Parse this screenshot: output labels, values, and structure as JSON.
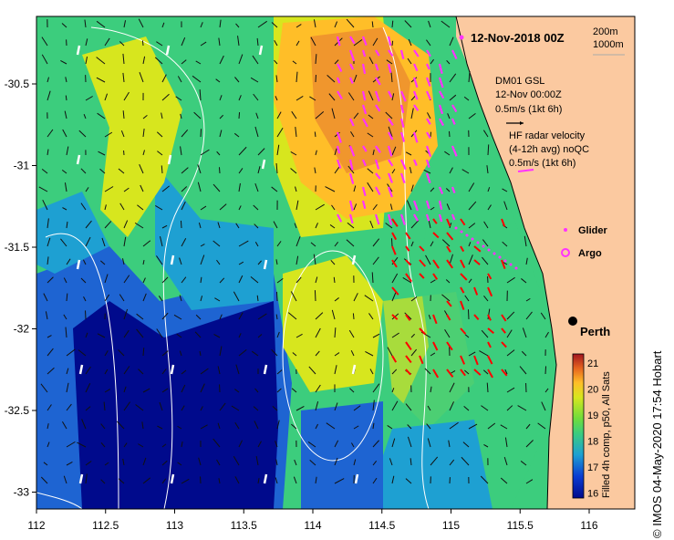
{
  "title": "12-Nov-2018 00Z",
  "isobath_labels": [
    "200m",
    "1000m"
  ],
  "x_ticks": [
    "112",
    "112.5",
    "113",
    "113.5",
    "114",
    "114.5",
    "115",
    "115.5",
    "116"
  ],
  "y_ticks": [
    "-30.5",
    "-31",
    "-31.5",
    "-32",
    "-32.5",
    "-33"
  ],
  "axis_ranges": {
    "lon": [
      112,
      116.3
    ],
    "lat": [
      -33.1,
      -30.2
    ]
  },
  "model_legend": {
    "line1": "DM01 GSL",
    "line2": "12-Nov 00:00Z",
    "line3": "0.5m/s (1kt 6h)"
  },
  "radar_legend": {
    "line1": "HF radar velocity",
    "line2": "(4-12h avg) noQC",
    "line3": "0.5m/s (1kt 6h)"
  },
  "glider_label": "Glider",
  "argo_label": "Argo",
  "city": {
    "name": "Perth",
    "lon": 115.86,
    "lat": -31.95
  },
  "colorbar": {
    "ticks": [
      "21",
      "20",
      "19",
      "18",
      "17",
      "16"
    ],
    "caption": "Filled 4h comp, p50, All Sats"
  },
  "credit": "© IMOS 04-May-2020 17:54 Hobart",
  "colors": {
    "land": "#fbc9a0",
    "model_arrow": "#000000",
    "radar_arrow": "#ff33ff",
    "radar_red": "#ff0000",
    "argo": "#ff33ff"
  }
}
